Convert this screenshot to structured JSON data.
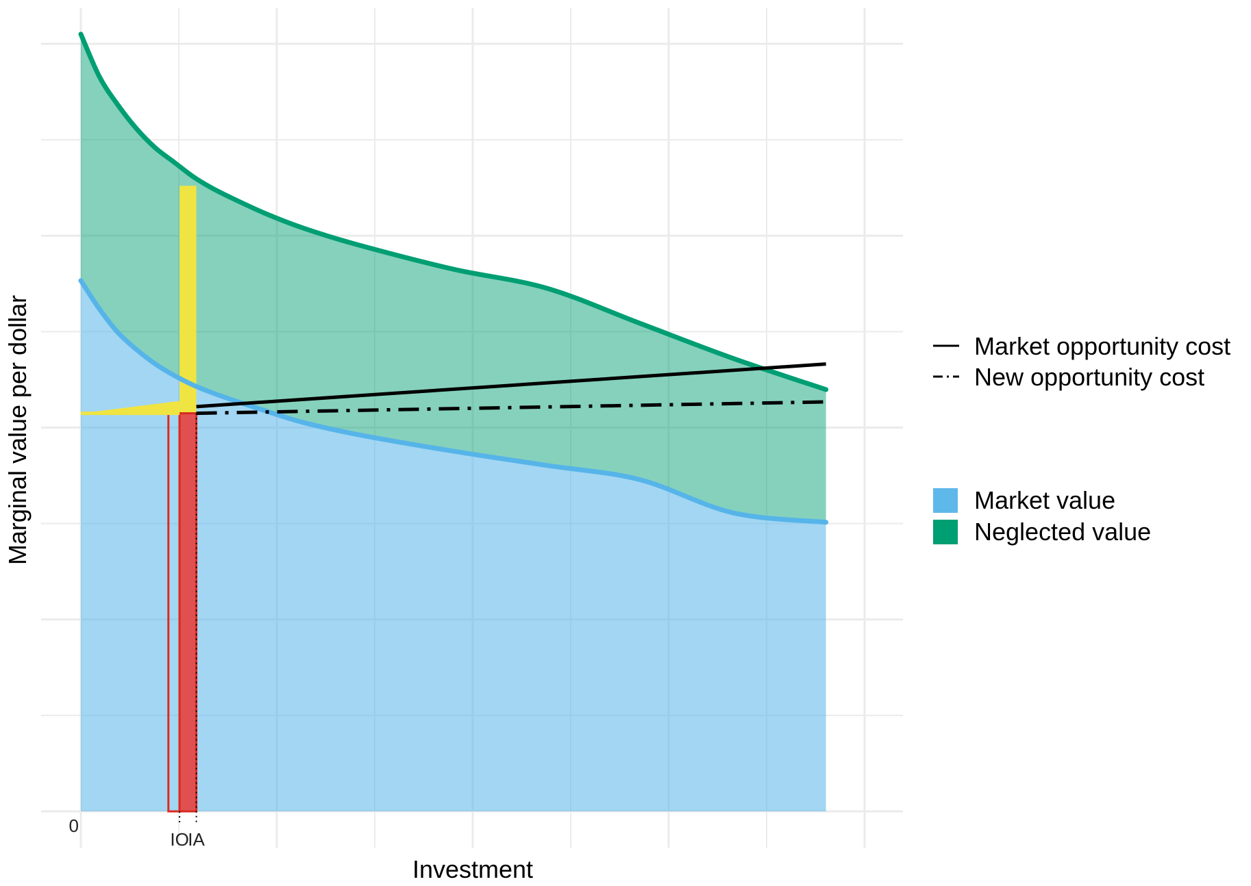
{
  "chart_data": {
    "type": "area",
    "xlabel": "Investment",
    "ylabel": "Marginal value per dollar",
    "x_tick_labels": [
      {
        "label": "IO",
        "x": 0.53
      },
      {
        "label": "IA",
        "x": 0.62
      }
    ],
    "y_tick_labels": [
      {
        "label": "0",
        "y": 0
      }
    ],
    "xlim": [
      0,
      4.2
    ],
    "ylim": [
      0,
      8.3
    ],
    "grid": true,
    "legend_position": "right",
    "series": [
      {
        "name": "Market value",
        "kind": "area+curve",
        "color": "#56B4E9",
        "x": [
          0.0,
          0.1,
          0.2,
          0.3,
          0.4,
          0.5,
          0.6,
          0.7,
          0.8,
          1.0,
          1.2,
          1.5,
          2.0,
          2.5,
          3.0,
          3.5,
          4.0
        ],
        "values": [
          5.6,
          5.3,
          5.05,
          4.87,
          4.72,
          4.6,
          4.5,
          4.42,
          4.35,
          4.22,
          4.1,
          3.97,
          3.8,
          3.65,
          3.5,
          3.15,
          3.05
        ]
      },
      {
        "name": "Neglected value",
        "kind": "area+curve",
        "color": "#009E73",
        "x": [
          0.0,
          0.1,
          0.2,
          0.3,
          0.4,
          0.5,
          0.6,
          0.7,
          0.8,
          1.0,
          1.2,
          1.5,
          2.0,
          2.5,
          3.0,
          3.5,
          4.0
        ],
        "values": [
          8.2,
          7.75,
          7.45,
          7.2,
          7.0,
          6.85,
          6.7,
          6.58,
          6.48,
          6.3,
          6.15,
          5.97,
          5.72,
          5.52,
          5.15,
          4.78,
          4.45
        ]
      },
      {
        "name": "Market opportunity cost",
        "kind": "line",
        "style": "solid",
        "color": "#000000",
        "x": [
          0.0,
          4.0
        ],
        "values": [
          4.2,
          4.72
        ]
      },
      {
        "name": "New opportunity cost",
        "kind": "line",
        "style": "dashdot",
        "color": "#000000",
        "x": [
          0.0,
          4.0
        ],
        "values": [
          4.2,
          4.32
        ]
      }
    ],
    "highlights": {
      "yellow_bar": {
        "x0": 0.53,
        "x1": 0.62,
        "y0": 4.2,
        "y1": 6.6,
        "color": "#F0E442"
      },
      "red_filled_bar": {
        "x0": 0.53,
        "x1": 0.62,
        "y0": 0,
        "y1": 4.2,
        "color": "#E05050"
      },
      "red_outline_bar": {
        "x0": 0.47,
        "x1": 0.53,
        "y0": 0,
        "y1": 4.2,
        "color": "#E0291E"
      }
    },
    "legend": {
      "lines": [
        {
          "label": "Market opportunity cost",
          "style": "solid"
        },
        {
          "label": "New opportunity cost",
          "style": "dashdot"
        }
      ],
      "fills": [
        {
          "label": "Market value",
          "color": "#56B4E9"
        },
        {
          "label": "Neglected value",
          "color": "#009E73"
        }
      ]
    }
  }
}
